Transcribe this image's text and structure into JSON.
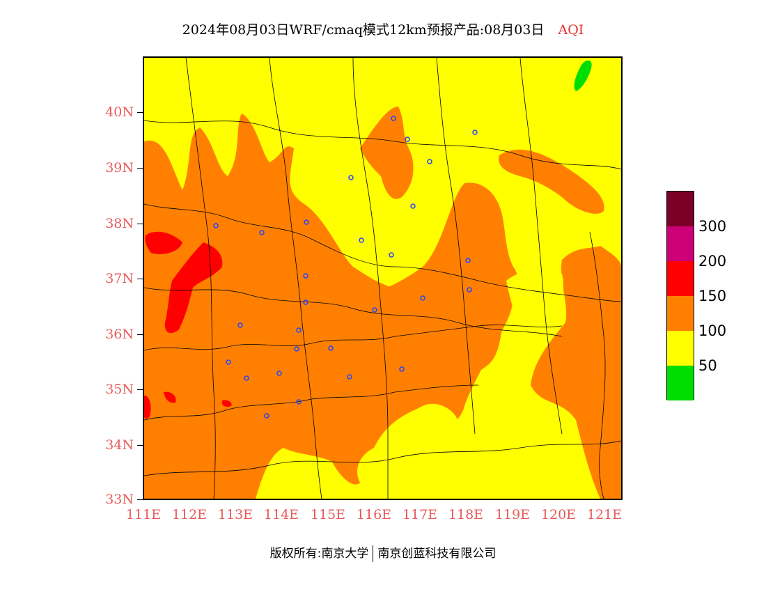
{
  "title": {
    "text": "2024年08月03日WRF/cmaq模式12km预报产品:08月03日",
    "product": "AQI"
  },
  "map": {
    "lat_ticks": [
      "40N",
      "39N",
      "38N",
      "37N",
      "36N",
      "35N",
      "34N",
      "33N"
    ],
    "lon_ticks": [
      "111E",
      "112E",
      "113E",
      "114E",
      "115E",
      "116E",
      "117E",
      "118E",
      "119E",
      "120E",
      "121E"
    ],
    "lat_range": [
      33,
      41
    ],
    "lon_range": [
      111,
      121.4
    ]
  },
  "legend": {
    "colors": [
      "#7a0028",
      "#cc0077",
      "#ff0000",
      "#ff8000",
      "#ffff00",
      "#00dd00"
    ],
    "labels": [
      "300",
      "200",
      "150",
      "100",
      "50"
    ]
  },
  "footer": {
    "left": "版权所有:南京大学",
    "right": "南京创蓝科技有限公司"
  }
}
